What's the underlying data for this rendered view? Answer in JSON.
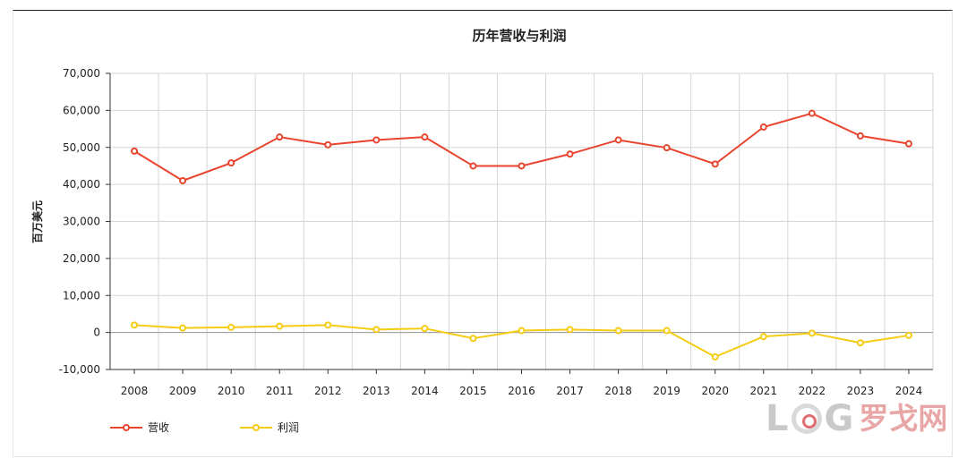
{
  "chart_data": {
    "type": "line",
    "title": "历年营收与利润",
    "xlabel": "",
    "ylabel": "百万美元",
    "categories": [
      "2008",
      "2009",
      "2010",
      "2011",
      "2012",
      "2013",
      "2014",
      "2015",
      "2016",
      "2017",
      "2018",
      "2019",
      "2020",
      "2021",
      "2022",
      "2023",
      "2024"
    ],
    "ylim": [
      -10000,
      70000
    ],
    "yticks": [
      -10000,
      0,
      10000,
      20000,
      30000,
      40000,
      50000,
      60000,
      70000
    ],
    "ytick_labels": [
      "-10,000",
      "0",
      "10,000",
      "20,000",
      "30,000",
      "40,000",
      "50,000",
      "60,000",
      "70,000"
    ],
    "grid": true,
    "legend_position": "bottom-left",
    "series": [
      {
        "name": "营收",
        "color": "#e8442e",
        "values": [
          49000,
          41000,
          45800,
          52800,
          50700,
          52000,
          52800,
          45000,
          45000,
          48200,
          52000,
          49900,
          45500,
          55500,
          59200,
          53100,
          51000
        ]
      },
      {
        "name": "利润",
        "color": "#f5cc12",
        "values": [
          2000,
          1200,
          1400,
          1700,
          2000,
          800,
          1100,
          -1600,
          500,
          800,
          500,
          500,
          -6600,
          -1100,
          -200,
          -2800,
          -800
        ]
      }
    ]
  },
  "watermark": {
    "latin_left": "L",
    "latin_right": "G",
    "chinese": "罗戈网"
  }
}
